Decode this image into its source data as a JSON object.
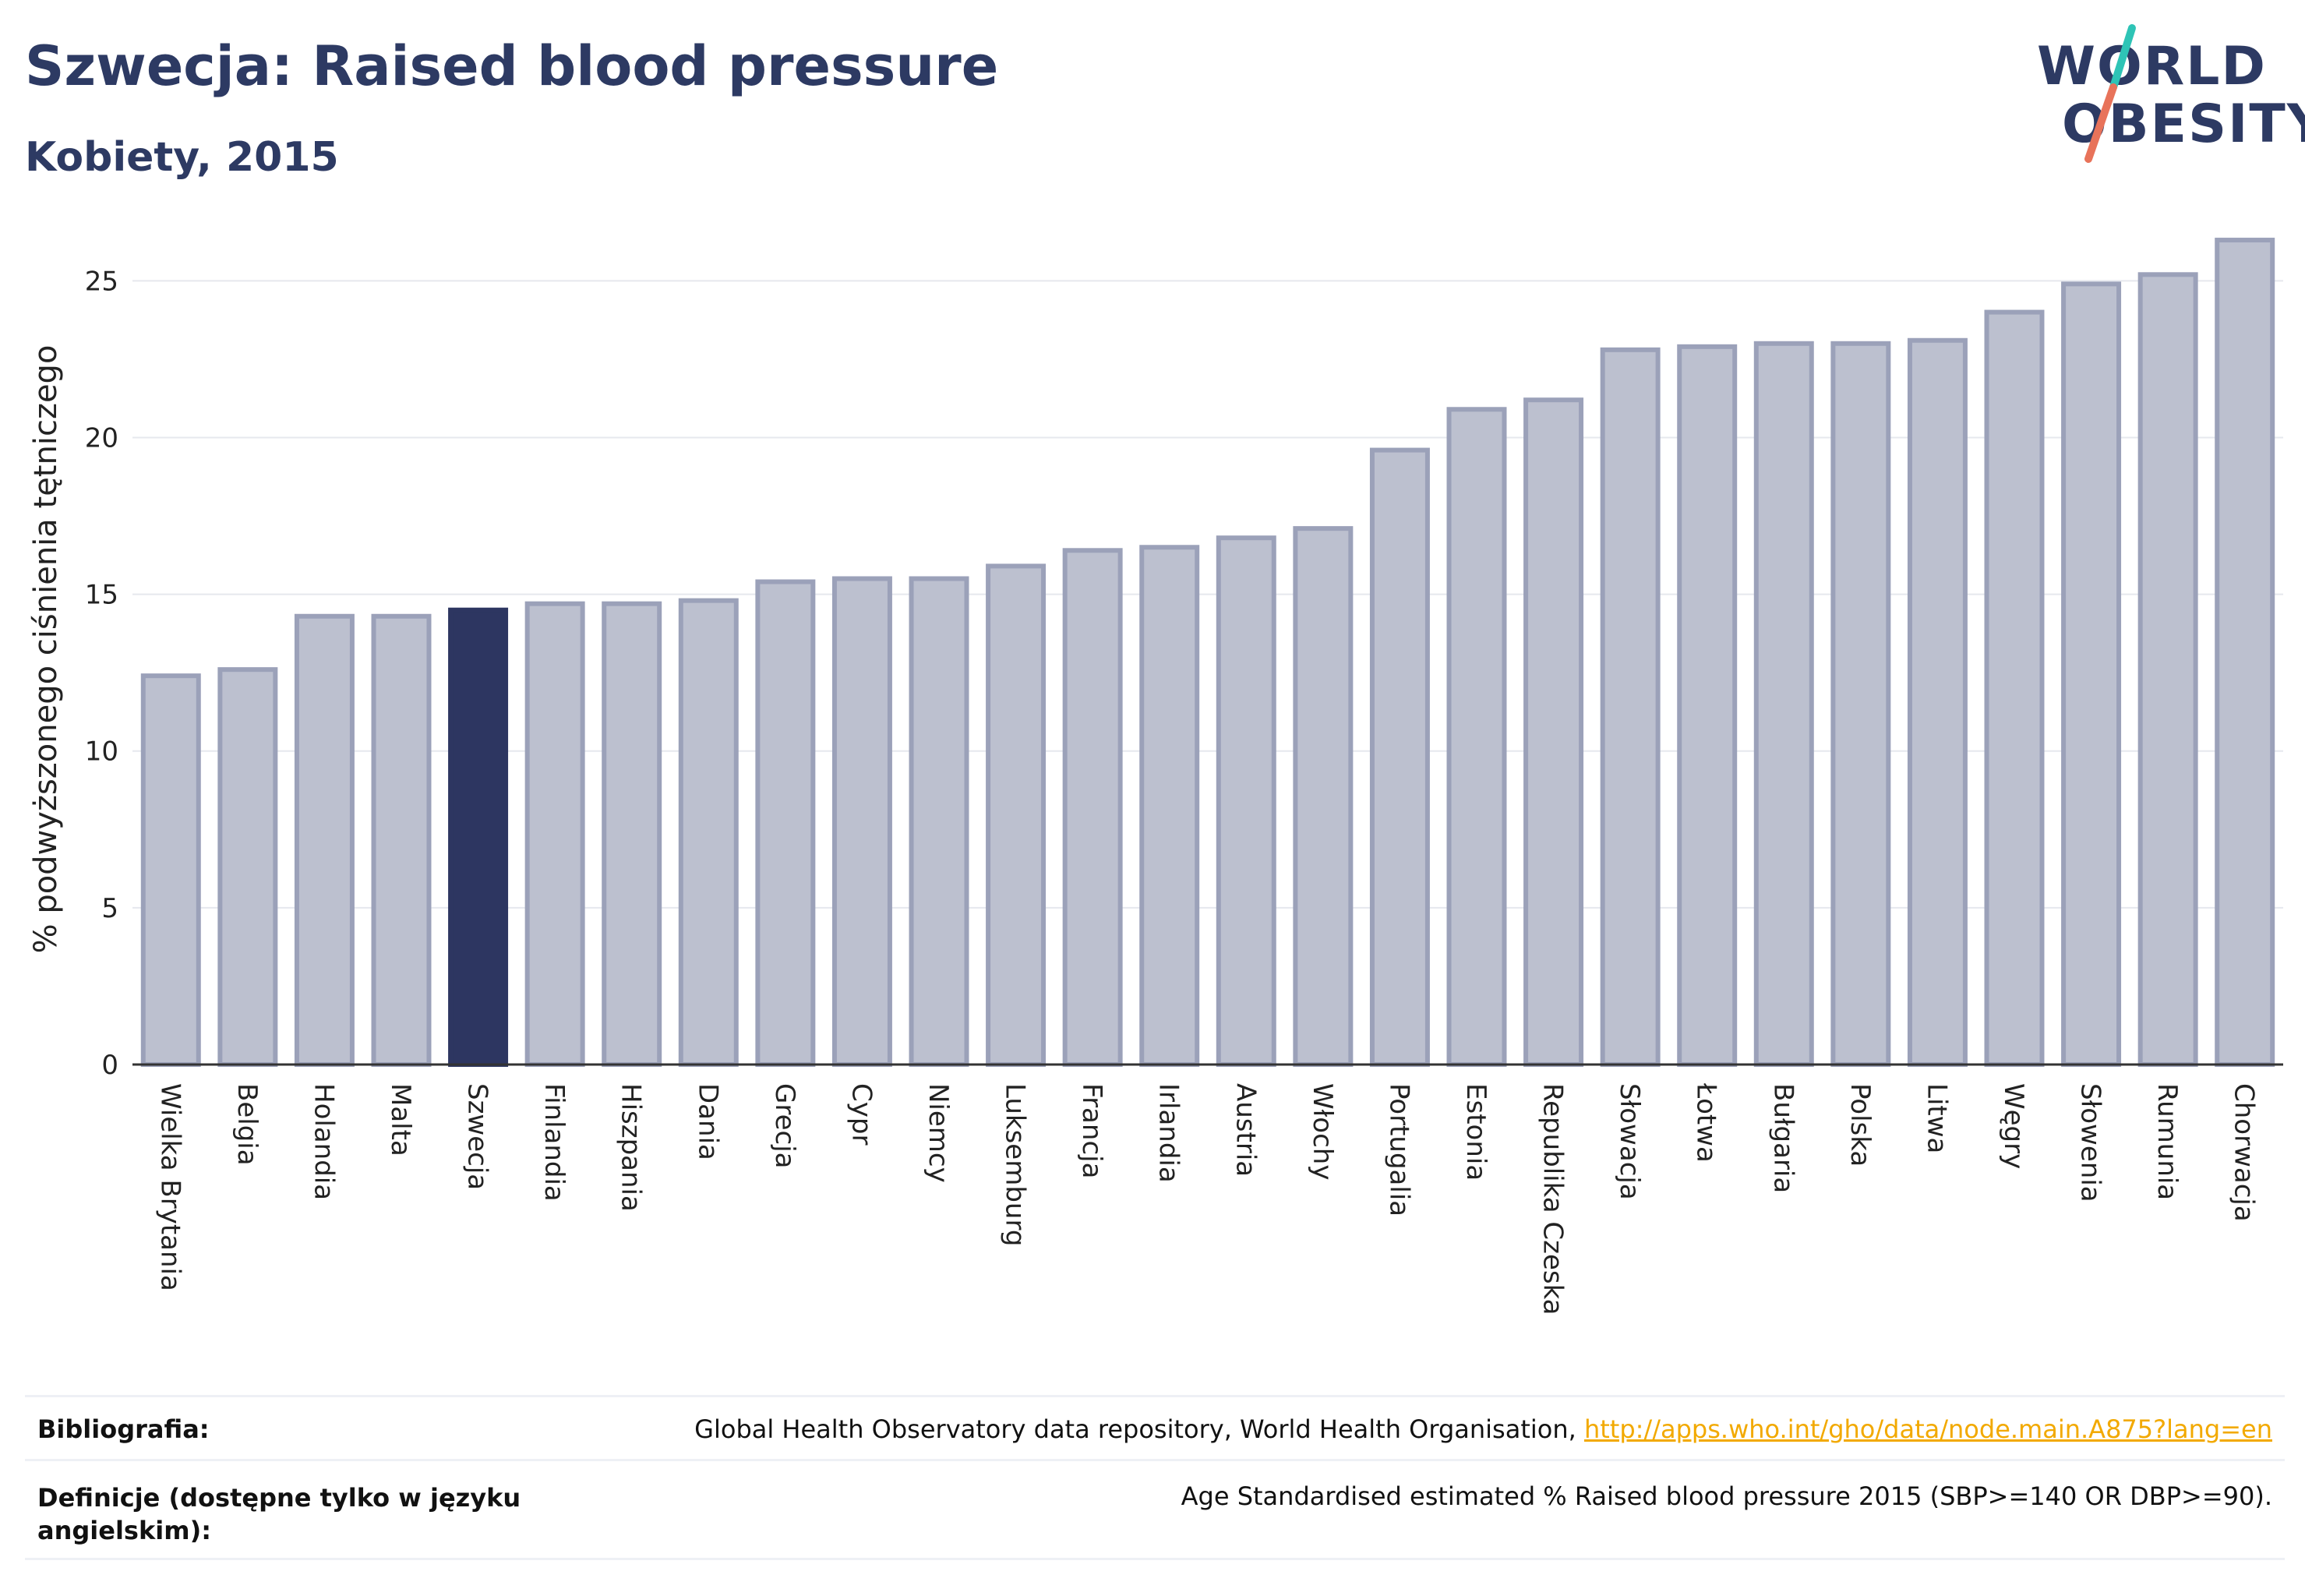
{
  "header": {
    "title": "Szwecja: Raised blood pressure",
    "subtitle": "Kobiety, 2015"
  },
  "logo": {
    "line1": "WORLD",
    "line2": "OBESITY",
    "colors": {
      "text": "#2d3a63",
      "slash_top": "#2ec4b6",
      "slash_bottom": "#e8735a"
    }
  },
  "chart_data": {
    "type": "bar",
    "ylabel": "% podwyższonego ciśnienia tętniczego",
    "ylim": [
      0,
      26.5
    ],
    "yticks": [
      0,
      5,
      10,
      15,
      20,
      25
    ],
    "grid": true,
    "highlight": "Szwecja",
    "colors": {
      "bar": "#bcc0cf",
      "bar_border": "#9ba1b9",
      "highlight": "#2d3661"
    },
    "categories": [
      "Wielka Brytania",
      "Belgia",
      "Holandia",
      "Malta",
      "Szwecja",
      "Finlandia",
      "Hiszpania",
      "Dania",
      "Grecja",
      "Cypr",
      "Niemcy",
      "Luksemburg",
      "Francja",
      "Irlandia",
      "Austria",
      "Włochy",
      "Portugalia",
      "Estonia",
      "Republika Czeska",
      "Słowacja",
      "Łotwa",
      "Bułgaria",
      "Polska",
      "Litwa",
      "Węgry",
      "Słowenia",
      "Rumunia",
      "Chorwacja"
    ],
    "values": [
      12.4,
      12.6,
      14.3,
      14.3,
      14.5,
      14.7,
      14.7,
      14.8,
      15.4,
      15.5,
      15.5,
      15.9,
      16.4,
      16.5,
      16.8,
      17.1,
      19.6,
      20.9,
      21.2,
      22.8,
      22.9,
      23.0,
      23.0,
      23.1,
      24.0,
      24.9,
      25.2,
      26.3
    ]
  },
  "footer": {
    "bibliography_label": "Bibliografia:",
    "bibliography_text": "Global Health Observatory data repository, World Health Organisation, ",
    "bibliography_link": "http://apps.who.int/gho/data/node.main.A875?lang=en",
    "definitions_label": "Definicje (dostępne tylko w języku angielskim):",
    "definitions_text": "Age Standardised estimated % Raised blood pressure 2015 (SBP>=140 OR DBP>=90)."
  }
}
